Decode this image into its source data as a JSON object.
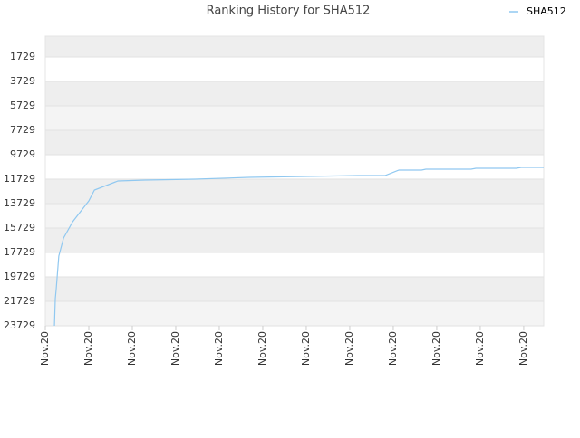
{
  "chart_data": {
    "type": "line",
    "title": "Ranking History for SHA512",
    "x": [
      0.21,
      0.23,
      0.25,
      0.31,
      0.42,
      0.63,
      1,
      1.13,
      1.67,
      2.29,
      3.44,
      4.69,
      5.94,
      7.19,
      7.81,
      8.13,
      8.65,
      8.75,
      9.79,
      9.9,
      10.83,
      10.94,
      11.46
    ],
    "series": [
      {
        "name": "SHA512",
        "color": "#90c8f0",
        "values": [
          23729,
          21507,
          20766,
          18025,
          16544,
          15211,
          13507,
          12618,
          11877,
          11803,
          11729,
          11581,
          11507,
          11433,
          11433,
          10988,
          10988,
          10914,
          10914,
          10840,
          10840,
          10766,
          10766
        ]
      }
    ],
    "xlim": [
      0,
      11.46
    ],
    "xticks": [
      {
        "value": 0,
        "label": "Nov.20"
      },
      {
        "value": 1,
        "label": "Nov.20"
      },
      {
        "value": 2,
        "label": "Nov.20"
      },
      {
        "value": 3,
        "label": "Nov.20"
      },
      {
        "value": 4,
        "label": "Nov.20"
      },
      {
        "value": 5,
        "label": "Nov.20"
      },
      {
        "value": 6,
        "label": "Nov.20"
      },
      {
        "value": 7,
        "label": "Nov.20"
      },
      {
        "value": 8,
        "label": "Nov.20"
      },
      {
        "value": 9,
        "label": "Nov.20"
      },
      {
        "value": 10,
        "label": "Nov.20"
      },
      {
        "value": 11,
        "label": "Nov.20"
      }
    ],
    "ylim": [
      23729,
      25
    ],
    "yticks": [
      1729,
      3729,
      5729,
      7729,
      9729,
      11729,
      13729,
      15729,
      17729,
      19729,
      21729,
      23729
    ],
    "grid": true,
    "legend": "top-right"
  }
}
